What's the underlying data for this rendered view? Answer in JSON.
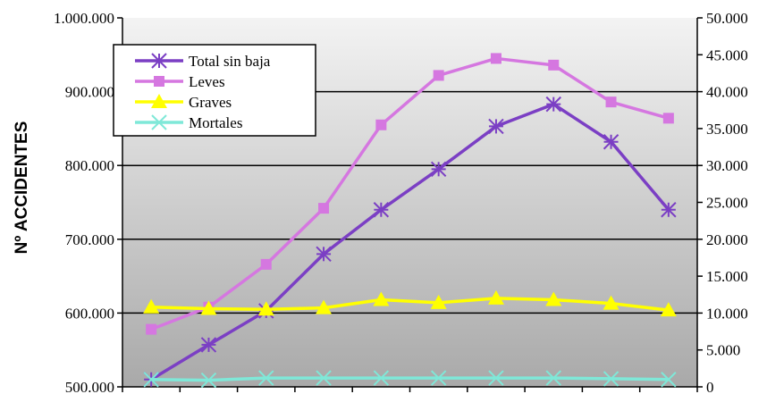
{
  "chart_data": {
    "type": "line",
    "title": "",
    "ylabel": "Nº ACCIDENTES",
    "x": [
      1,
      2,
      3,
      4,
      5,
      6,
      7,
      8,
      9,
      10
    ],
    "y_left": {
      "ylim": [
        500000,
        1000000
      ],
      "ticks": [
        "500.000",
        "600.000",
        "700.000",
        "800.000",
        "900.000",
        "1.000.000"
      ]
    },
    "y_right": {
      "ylim": [
        0,
        50000
      ],
      "ticks": [
        "0",
        "5.000",
        "10.000",
        "15.000",
        "20.000",
        "25.000",
        "30.000",
        "35.000",
        "40.000",
        "45.000",
        "50.000"
      ]
    },
    "grid": true,
    "legend_position": "top-left",
    "series": [
      {
        "name": "Total sin baja",
        "axis": "left",
        "color": "#7b3fc4",
        "marker": "asterisk",
        "values": [
          510000,
          557000,
          603000,
          680000,
          740000,
          795000,
          853000,
          883000,
          832000,
          740000
        ]
      },
      {
        "name": "Leves",
        "axis": "left",
        "color": "#d577e0",
        "marker": "square",
        "values": [
          578000,
          608000,
          666000,
          742000,
          855000,
          922000,
          945000,
          936000,
          886000,
          864000
        ]
      },
      {
        "name": "Graves",
        "axis": "right",
        "color": "#ffff00",
        "marker": "triangle",
        "values": [
          10800,
          10600,
          10500,
          10700,
          11800,
          11400,
          12000,
          11800,
          11300,
          10400
        ]
      },
      {
        "name": "Mortales",
        "axis": "right",
        "color": "#7fe8d8",
        "marker": "x",
        "values": [
          1000,
          900,
          1200,
          1200,
          1200,
          1200,
          1200,
          1200,
          1100,
          1000
        ]
      }
    ]
  }
}
